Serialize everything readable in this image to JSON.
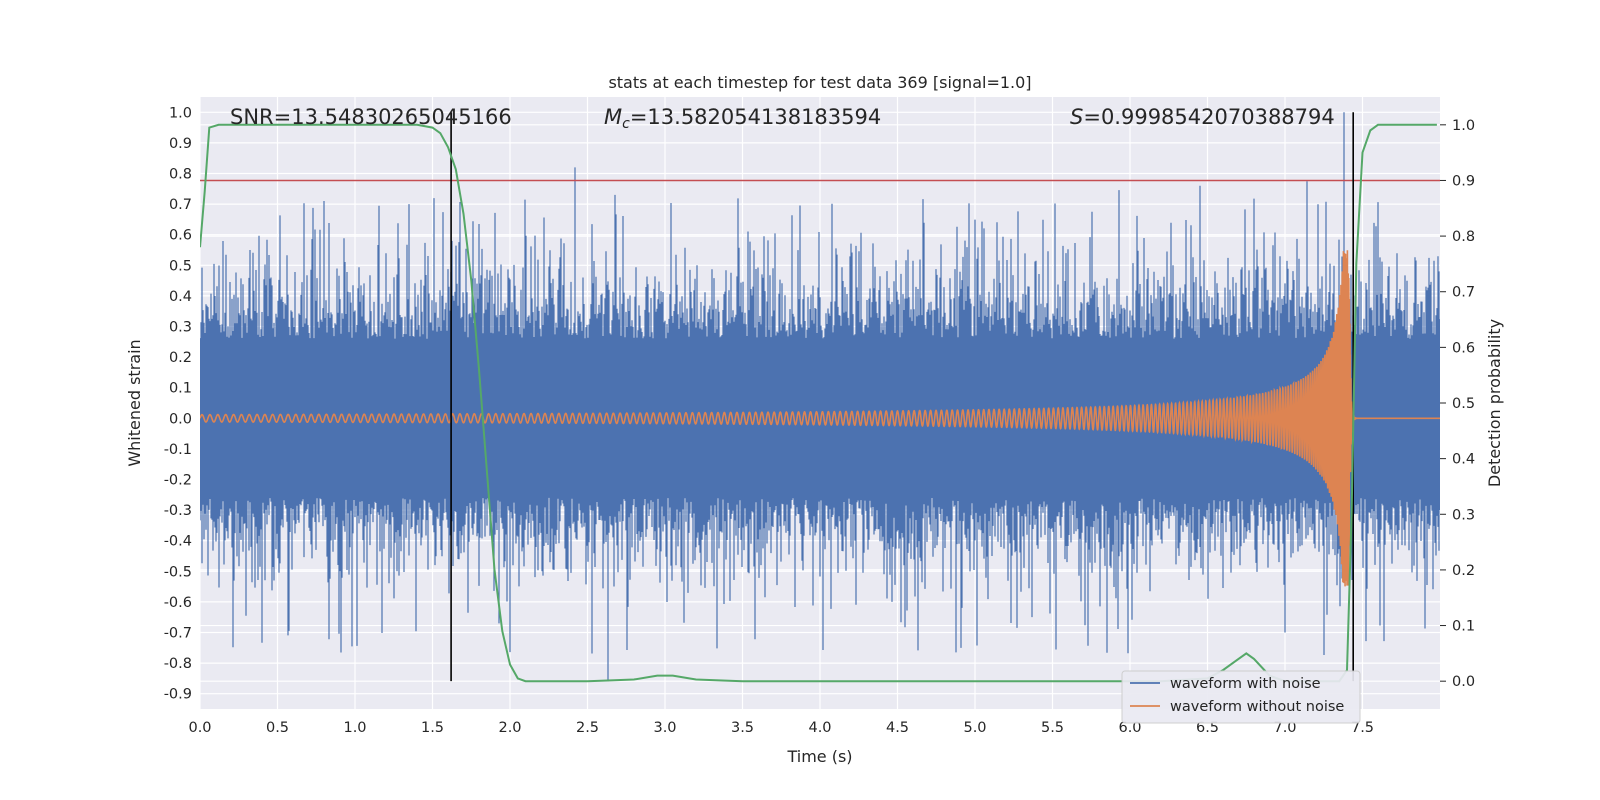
{
  "chart_data": {
    "type": "line",
    "title": "stats at each timestep for test data 369 [signal=1.0]",
    "xlabel": "Time (s)",
    "ylabel": "Whitened strain",
    "y2label": "Detection probability",
    "xlim": [
      0.0,
      8.0
    ],
    "ylim": [
      -0.95,
      1.05
    ],
    "y2lim": [
      -0.05,
      1.05
    ],
    "xticks": [
      "0.0",
      "0.5",
      "1.0",
      "1.5",
      "2.0",
      "2.5",
      "3.0",
      "3.5",
      "4.0",
      "4.5",
      "5.0",
      "5.5",
      "6.0",
      "6.5",
      "7.0",
      "7.5"
    ],
    "yticks": [
      "1.0",
      "0.9",
      "0.8",
      "0.7",
      "0.6",
      "0.5",
      "0.4",
      "0.3",
      "0.2",
      "0.1",
      "0.0",
      "-0.1",
      "-0.2",
      "-0.3",
      "-0.4",
      "-0.5",
      "-0.6",
      "-0.7",
      "-0.8",
      "-0.9"
    ],
    "y2ticks": [
      "1.0",
      "0.9",
      "0.8",
      "0.7",
      "0.6",
      "0.5",
      "0.4",
      "0.3",
      "0.2",
      "0.1",
      "0.0"
    ],
    "grid": true,
    "legend_position": "lower-right",
    "annotations": {
      "snr": "SNR=13.54830265045166",
      "mc_symbol": "M",
      "mc_sub": "c",
      "mc_value": "=13.582054138183594",
      "s_symbol": "S",
      "s_value": "=0.9998542070388794"
    },
    "series": [
      {
        "name": "waveform with noise",
        "color": "#4c72b0",
        "axis": "left",
        "description_amplitude_range": [
          -0.86,
          1.0
        ],
        "peaks": [
          {
            "x": 2.42,
            "y": 0.82
          },
          {
            "x": 7.38,
            "y": 1.0
          },
          {
            "x": 2.63,
            "y": -0.86
          },
          {
            "x": 0.8,
            "y": 0.71
          },
          {
            "x": 1.35,
            "y": 0.7
          },
          {
            "x": 2.68,
            "y": 0.73
          },
          {
            "x": 6.45,
            "y": 0.76
          }
        ]
      },
      {
        "name": "waveform without noise",
        "color": "#dd8452",
        "axis": "left",
        "chirp_start": 0.0,
        "chirp_merger": 7.42,
        "peak_amplitude": 0.55,
        "start_amplitude": 0.012
      },
      {
        "name": "",
        "color": "#55a868",
        "axis": "right",
        "x": [
          0.0,
          0.03,
          0.06,
          0.12,
          0.2,
          0.5,
          1.0,
          1.4,
          1.5,
          1.55,
          1.6,
          1.65,
          1.7,
          1.75,
          1.8,
          1.85,
          1.9,
          1.95,
          2.0,
          2.05,
          2.1,
          2.2,
          2.5,
          2.8,
          2.95,
          3.05,
          3.2,
          3.5,
          4.5,
          5.5,
          6.2,
          6.5,
          6.6,
          6.7,
          6.75,
          6.8,
          6.9,
          7.0,
          7.2,
          7.35,
          7.4,
          7.43,
          7.46,
          7.5,
          7.55,
          7.6,
          7.8,
          7.98
        ],
        "y": [
          0.78,
          0.88,
          0.995,
          1.0,
          1.0,
          1.0,
          1.0,
          1.0,
          0.995,
          0.985,
          0.96,
          0.92,
          0.84,
          0.72,
          0.56,
          0.38,
          0.2,
          0.09,
          0.03,
          0.005,
          0.0,
          0.0,
          0.0,
          0.003,
          0.01,
          0.01,
          0.003,
          0.0,
          0.0,
          0.0,
          0.0,
          0.005,
          0.02,
          0.04,
          0.05,
          0.04,
          0.01,
          0.0,
          0.0,
          0.0,
          0.02,
          0.3,
          0.75,
          0.95,
          0.99,
          1.0,
          1.0,
          1.0
        ]
      }
    ],
    "threshold": {
      "color": "#c44e52",
      "y2": 0.9
    },
    "vlines": [
      {
        "x": 1.62,
        "color": "#000000"
      },
      {
        "x": 7.44,
        "color": "#000000"
      }
    ]
  }
}
